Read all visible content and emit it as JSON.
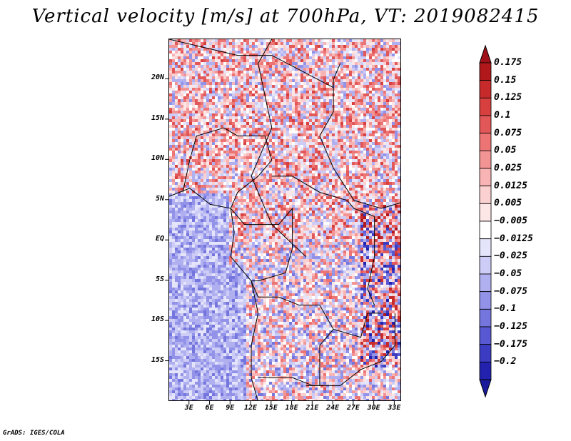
{
  "title": "Vertical velocity [m/s] at 700hPa, VT: 2019082415",
  "credit": "GrADS: IGES/COLA",
  "map": {
    "lon_range": [
      0,
      34
    ],
    "lat_range": [
      -20,
      25
    ],
    "lat_ticks": [
      {
        "value": 20,
        "label": "20N"
      },
      {
        "value": 15,
        "label": "15N"
      },
      {
        "value": 10,
        "label": "10N"
      },
      {
        "value": 5,
        "label": "5N"
      },
      {
        "value": 0,
        "label": "EQ"
      },
      {
        "value": -5,
        "label": "5S"
      },
      {
        "value": -10,
        "label": "10S"
      },
      {
        "value": -15,
        "label": "15S"
      }
    ],
    "lon_ticks": [
      {
        "value": 3,
        "label": "3E"
      },
      {
        "value": 6,
        "label": "6E"
      },
      {
        "value": 9,
        "label": "9E"
      },
      {
        "value": 12,
        "label": "12E"
      },
      {
        "value": 15,
        "label": "15E"
      },
      {
        "value": 18,
        "label": "18E"
      },
      {
        "value": 21,
        "label": "21E"
      },
      {
        "value": 24,
        "label": "24E"
      },
      {
        "value": 27,
        "label": "27E"
      },
      {
        "value": 30,
        "label": "30E"
      },
      {
        "value": 33,
        "label": "33E"
      }
    ]
  },
  "colorbar": {
    "levels": [
      {
        "label": "0.175",
        "color": "#b0181c"
      },
      {
        "label": "0.15",
        "color": "#c62a2a"
      },
      {
        "label": "0.125",
        "color": "#d84040"
      },
      {
        "label": "0.1",
        "color": "#e25757"
      },
      {
        "label": "0.075",
        "color": "#ec7474"
      },
      {
        "label": "0.05",
        "color": "#f39494"
      },
      {
        "label": "0.025",
        "color": "#f8b4b4"
      },
      {
        "label": "0.0125",
        "color": "#fbd0d0"
      },
      {
        "label": "0.005",
        "color": "#fde6e6"
      },
      {
        "label": "−0.005",
        "color": "#ffffff"
      },
      {
        "label": "−0.0125",
        "color": "#e4e4fa"
      },
      {
        "label": "−0.025",
        "color": "#ccccf6"
      },
      {
        "label": "−0.05",
        "color": "#b0b0f0"
      },
      {
        "label": "−0.075",
        "color": "#9292e8"
      },
      {
        "label": "−0.1",
        "color": "#7575de"
      },
      {
        "label": "−0.125",
        "color": "#5858d2"
      },
      {
        "label": "−0.175",
        "color": "#3c3cc2"
      },
      {
        "label": "−0.2",
        "color": "#2222ae"
      }
    ],
    "top_color": "#a01018",
    "bottom_color": "#1a1a9c"
  }
}
